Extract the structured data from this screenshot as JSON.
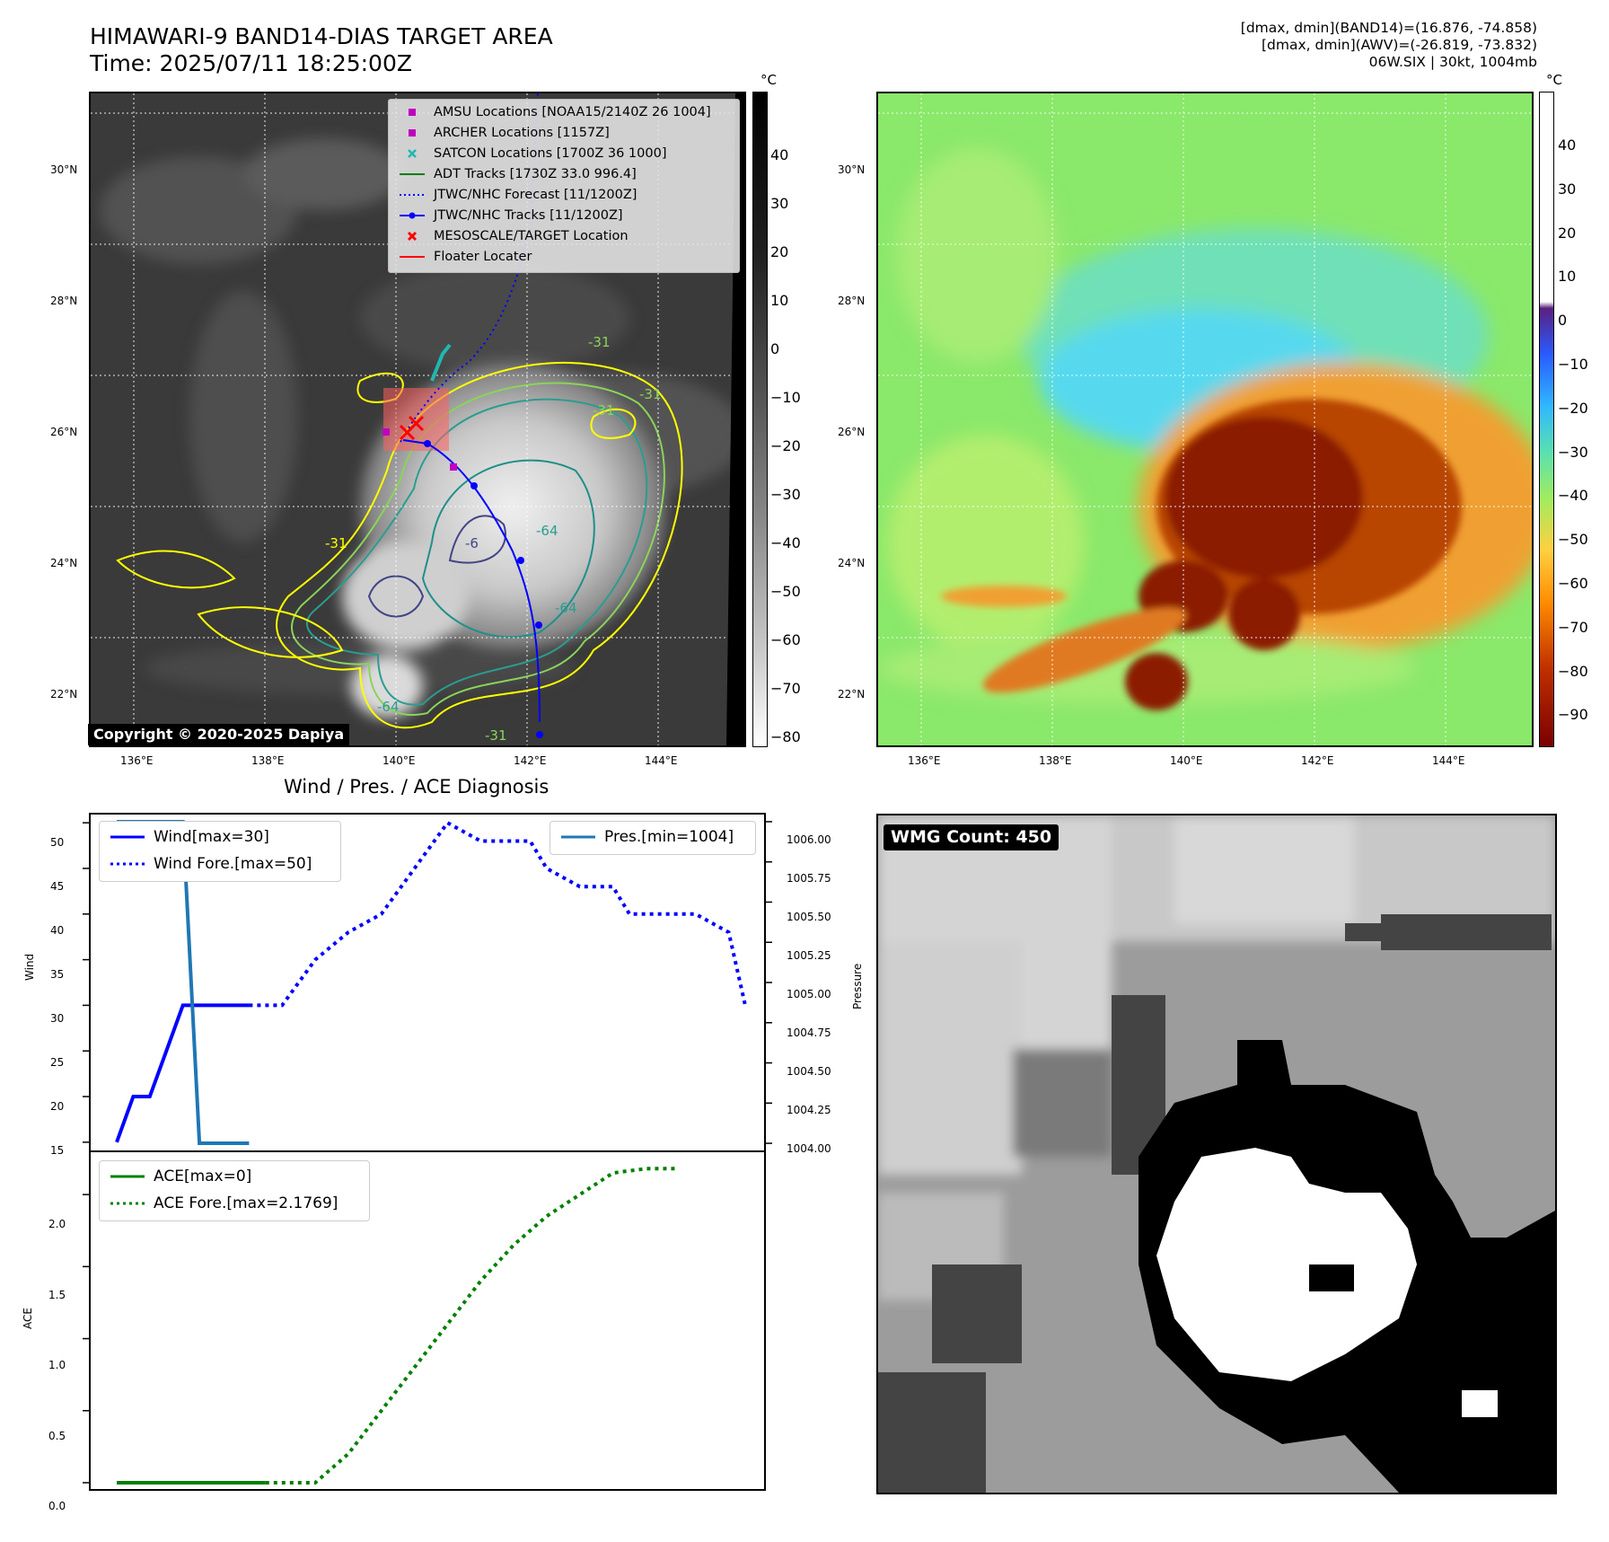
{
  "header": {
    "title_line1": "HIMAWARI-9 BAND14-DIAS TARGET AREA",
    "title_line2": "Time: 2025/07/11 18:25:00Z",
    "right_line1": "[dmax, dmin](BAND14)=(16.876, -74.858)",
    "right_line2": "[dmax, dmin](AWV)=(-26.819, -73.832)",
    "right_line3": "06W.SIX | 30kt, 1004mb"
  },
  "map_axes": {
    "lat_labels": [
      "30°N",
      "28°N",
      "26°N",
      "24°N",
      "22°N"
    ],
    "lon_labels": [
      "136°E",
      "138°E",
      "140°E",
      "142°E",
      "144°E"
    ]
  },
  "panel1": {
    "legend": [
      {
        "label": "AMSU Locations [NOAA15/2140Z 26 1004]",
        "symbol": "square",
        "color": "#c000c0"
      },
      {
        "label": "ARCHER Locations [1157Z]",
        "symbol": "square",
        "color": "#c000c0"
      },
      {
        "label": "SATCON Locations [1700Z 36 1000]",
        "symbol": "x",
        "color": "#1fb8b0"
      },
      {
        "label": "ADT Tracks [1730Z 33.0 996.4]",
        "symbol": "line",
        "color": "#008000"
      },
      {
        "label": "JTWC/NHC Forecast [11/1200Z]",
        "symbol": "dotted",
        "color": "#0000ff"
      },
      {
        "label": "JTWC/NHC Tracks [11/1200Z]",
        "symbol": "line-dot",
        "color": "#0000ff"
      },
      {
        "label": "MESOSCALE/TARGET Location",
        "symbol": "x",
        "color": "#ff0000"
      },
      {
        "label": "Floater Locater",
        "symbol": "line",
        "color": "#ff0000"
      }
    ],
    "contour_labels": [
      "-31",
      "-31",
      "-31",
      "-64",
      "-64",
      "-64",
      "-31",
      "-6",
      "-31"
    ],
    "copyright": "Copyright © 2020-2025 Dapiya",
    "colorbar": {
      "unit": "°C",
      "ticks": [
        "40",
        "30",
        "20",
        "10",
        "0",
        "−10",
        "−20",
        "−30",
        "−40",
        "−50",
        "−60",
        "−70",
        "−80"
      ]
    }
  },
  "panel2": {
    "colorbar": {
      "unit": "°C",
      "ticks": [
        "40",
        "30",
        "20",
        "10",
        "0",
        "−10",
        "−20",
        "−30",
        "−40",
        "−50",
        "−60",
        "−70",
        "−80",
        "−90"
      ]
    }
  },
  "panel3": {
    "title": "Wind / Pres. / ACE Diagnosis",
    "wind_ylabel": "Wind",
    "pres_ylabel": "Pressure",
    "ace_ylabel": "ACE",
    "wind_ticks": [
      "50",
      "45",
      "40",
      "35",
      "30",
      "25",
      "20",
      "15"
    ],
    "pres_ticks": [
      "1006.00",
      "1005.75",
      "1005.50",
      "1005.25",
      "1005.00",
      "1004.75",
      "1004.50",
      "1004.25",
      "1004.00"
    ],
    "ace_ticks": [
      "2.0",
      "1.5",
      "1.0",
      "0.5",
      "0.0"
    ],
    "legend_wind": [
      {
        "label": "Wind[max=30]",
        "style": "solid",
        "color": "#0000ff"
      },
      {
        "label": "Wind Fore.[max=50]",
        "style": "dotted",
        "color": "#0000ff"
      }
    ],
    "legend_pres": [
      {
        "label": "Pres.[min=1004]",
        "style": "solid",
        "color": "#1f77b4"
      }
    ],
    "legend_ace": [
      {
        "label": "ACE[max=0]",
        "style": "solid",
        "color": "#008000"
      },
      {
        "label": "ACE Fore.[max=2.1769]",
        "style": "dotted",
        "color": "#008000"
      }
    ]
  },
  "panel4": {
    "badge": "WMG Count: 450"
  },
  "chart_data": [
    {
      "type": "line",
      "title": "Wind / Pres. / ACE Diagnosis",
      "ylabel": "Wind",
      "ylim": [
        14,
        51
      ],
      "x_index": [
        0,
        1,
        2,
        3,
        4,
        5,
        6,
        7,
        8,
        9
      ],
      "series": [
        {
          "name": "Wind[max=30]",
          "x": [
            0,
            1,
            2,
            3,
            4,
            5,
            6,
            7,
            8
          ],
          "values": [
            15,
            20,
            20,
            25,
            30,
            30,
            30,
            30,
            30
          ]
        }
      ]
    },
    {
      "type": "line",
      "ylabel": "Wind",
      "ylim": [
        14,
        51
      ],
      "series": [
        {
          "name": "Wind Fore.[max=50]",
          "x": [
            8,
            10,
            12,
            14,
            16,
            18,
            20,
            22,
            24,
            25,
            26,
            28,
            30,
            31,
            33,
            35,
            37,
            38
          ],
          "values": [
            30,
            30,
            35,
            38,
            40,
            45,
            50,
            48,
            48,
            48,
            45,
            43,
            43,
            40,
            40,
            40,
            38,
            30
          ]
        }
      ]
    },
    {
      "type": "line",
      "ylabel": "Pressure",
      "ylim": [
        1003.95,
        1006.05
      ],
      "series": [
        {
          "name": "Pres.[min=1004]",
          "x": [
            0,
            1,
            2,
            3,
            4,
            5,
            6,
            7,
            8
          ],
          "values": [
            1006,
            1006,
            1006,
            1006,
            1006,
            1004,
            1004,
            1004,
            1004
          ]
        }
      ]
    },
    {
      "type": "line",
      "ylabel": "ACE",
      "ylim": [
        -0.05,
        2.3
      ],
      "series": [
        {
          "name": "ACE[max=0]",
          "x": [
            0,
            9
          ],
          "values": [
            0,
            0
          ]
        },
        {
          "name": "ACE Fore.[max=2.1769]",
          "x": [
            9,
            12,
            14,
            16,
            18,
            20,
            22,
            24,
            26,
            28,
            30,
            32,
            34
          ],
          "values": [
            0,
            0,
            0.2,
            0.5,
            0.8,
            1.1,
            1.4,
            1.65,
            1.85,
            2.0,
            2.15,
            2.18,
            2.18
          ]
        }
      ]
    }
  ]
}
